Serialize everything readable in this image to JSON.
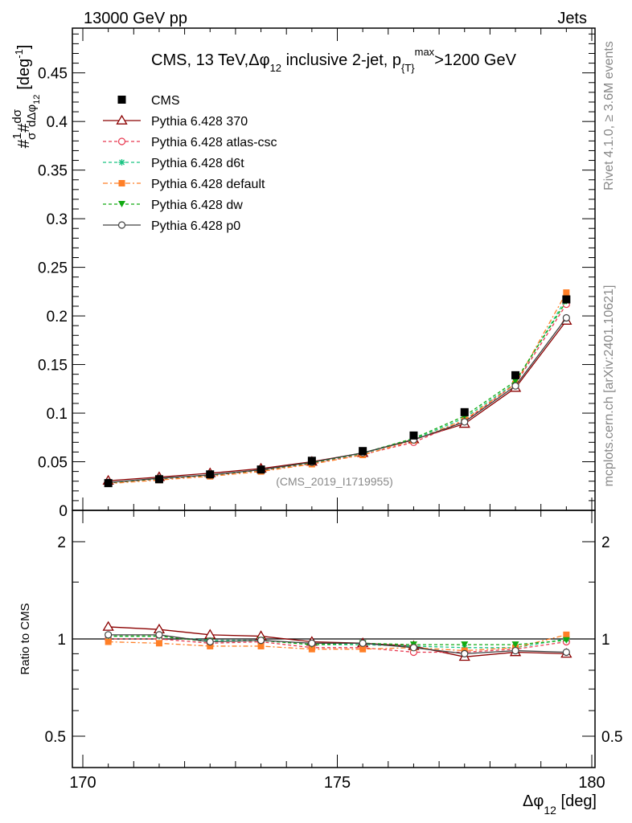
{
  "header": {
    "left": "13000 GeV pp",
    "right": "Jets"
  },
  "side_labels": {
    "rivet": "Rivet 4.1.0, ≥ 3.6M events",
    "mcplots": "mcplots.cern.ch [arXiv:2401.10621]"
  },
  "chart_data": {
    "type": "line",
    "title": "CMS, 13 TeV,Δφ₁₂ inclusive 2-jet,  p_{T}^max>1200 GeV",
    "title_parts": {
      "main": "CMS, 13 TeV,Δφ",
      "sub12": "12",
      "mid": " inclusive 2-jet,  p",
      "subT": "{T}",
      "supmax": "max",
      "tail": ">1200 GeV"
    },
    "watermark": "(CMS_2019_I1719955)",
    "xlabel": "Δφ₁₂ [deg]",
    "xlabel_parts": {
      "main": "Δφ",
      "sub": "12",
      "unit": " [deg]"
    },
    "ylabel": "1/σ dσ/dΔφ₁₂ [deg⁻¹]",
    "ylabel_parts": {
      "hash": "#",
      "one": "1",
      "sigma": "σ",
      "dsigma": "dσ",
      "ddphi": "dΔφ",
      "sub": "12",
      "unit": "[deg",
      "exp": "-1",
      "close": "]"
    },
    "xlim": [
      170,
      180
    ],
    "ylim": [
      0,
      0.5
    ],
    "x_ticks": [
      "170",
      "175",
      "180"
    ],
    "y_ticks": [
      "0",
      "0.05",
      "0.1",
      "0.15",
      "0.2",
      "0.25",
      "0.3",
      "0.35",
      "0.4",
      "0.45"
    ],
    "x": [
      170.5,
      171.5,
      172.5,
      173.5,
      174.5,
      175.5,
      176.5,
      177.5,
      178.5,
      179.5
    ],
    "data": {
      "name": "CMS",
      "values": [
        0.028,
        0.032,
        0.037,
        0.042,
        0.051,
        0.061,
        0.077,
        0.101,
        0.139,
        0.217
      ]
    },
    "series": [
      {
        "name": "Pythia 6.428 370",
        "color": "#8b0000",
        "dash": "",
        "marker": "open-triangle",
        "values": [
          0.0305,
          0.0342,
          0.0382,
          0.043,
          0.05,
          0.059,
          0.073,
          0.089,
          0.126,
          0.195
        ]
      },
      {
        "name": "Pythia 6.428 atlas-csc",
        "color": "#e8384f",
        "dash": "4,3",
        "marker": "open-circle",
        "values": [
          0.028,
          0.032,
          0.036,
          0.041,
          0.048,
          0.0575,
          0.07,
          0.092,
          0.13,
          0.212
        ]
      },
      {
        "name": "Pythia 6.428 d6t",
        "color": "#19c482",
        "dash": "4,3",
        "marker": "star",
        "values": [
          0.0285,
          0.0325,
          0.0365,
          0.0415,
          0.049,
          0.0585,
          0.073,
          0.095,
          0.131,
          0.218
        ]
      },
      {
        "name": "Pythia 6.428 default",
        "color": "#ff7f27",
        "dash": "6,3,2,3",
        "marker": "filled-square",
        "values": [
          0.0275,
          0.0312,
          0.035,
          0.04,
          0.0475,
          0.057,
          0.072,
          0.093,
          0.13,
          0.224
        ]
      },
      {
        "name": "Pythia 6.428 dw",
        "color": "#11aa11",
        "dash": "4,3",
        "marker": "filled-triangle-down",
        "values": [
          0.0285,
          0.0328,
          0.0362,
          0.0415,
          0.049,
          0.059,
          0.074,
          0.097,
          0.133,
          0.215
        ]
      },
      {
        "name": "Pythia 6.428 p0",
        "color": "#404040",
        "dash": "",
        "marker": "open-circle",
        "values": [
          0.0287,
          0.033,
          0.0365,
          0.0418,
          0.0495,
          0.0592,
          0.0725,
          0.091,
          0.128,
          0.198
        ]
      }
    ],
    "ratio": {
      "ylabel": "Ratio to CMS",
      "ylim": [
        0.4,
        2.3
      ],
      "y_ticks": [
        "0.5",
        "1",
        "2"
      ],
      "series": [
        {
          "name": "Pythia 6.428 370",
          "values": [
            1.09,
            1.07,
            1.03,
            1.02,
            0.98,
            0.97,
            0.95,
            0.88,
            0.91,
            0.9
          ]
        },
        {
          "name": "Pythia 6.428 atlas-csc",
          "values": [
            1.0,
            1.0,
            0.97,
            0.98,
            0.94,
            0.94,
            0.91,
            0.91,
            0.93,
            0.98
          ]
        },
        {
          "name": "Pythia 6.428 d6t",
          "values": [
            1.02,
            1.02,
            0.99,
            0.99,
            0.96,
            0.96,
            0.95,
            0.94,
            0.94,
            1.0
          ]
        },
        {
          "name": "Pythia 6.428 default",
          "values": [
            0.98,
            0.97,
            0.95,
            0.95,
            0.93,
            0.93,
            0.94,
            0.92,
            0.94,
            1.03
          ]
        },
        {
          "name": "Pythia 6.428 dw",
          "values": [
            1.02,
            1.02,
            0.98,
            0.99,
            0.96,
            0.97,
            0.96,
            0.96,
            0.96,
            0.99
          ]
        },
        {
          "name": "Pythia 6.428 p0",
          "values": [
            1.03,
            1.03,
            0.98,
            0.99,
            0.97,
            0.97,
            0.94,
            0.9,
            0.92,
            0.91
          ]
        }
      ]
    }
  }
}
